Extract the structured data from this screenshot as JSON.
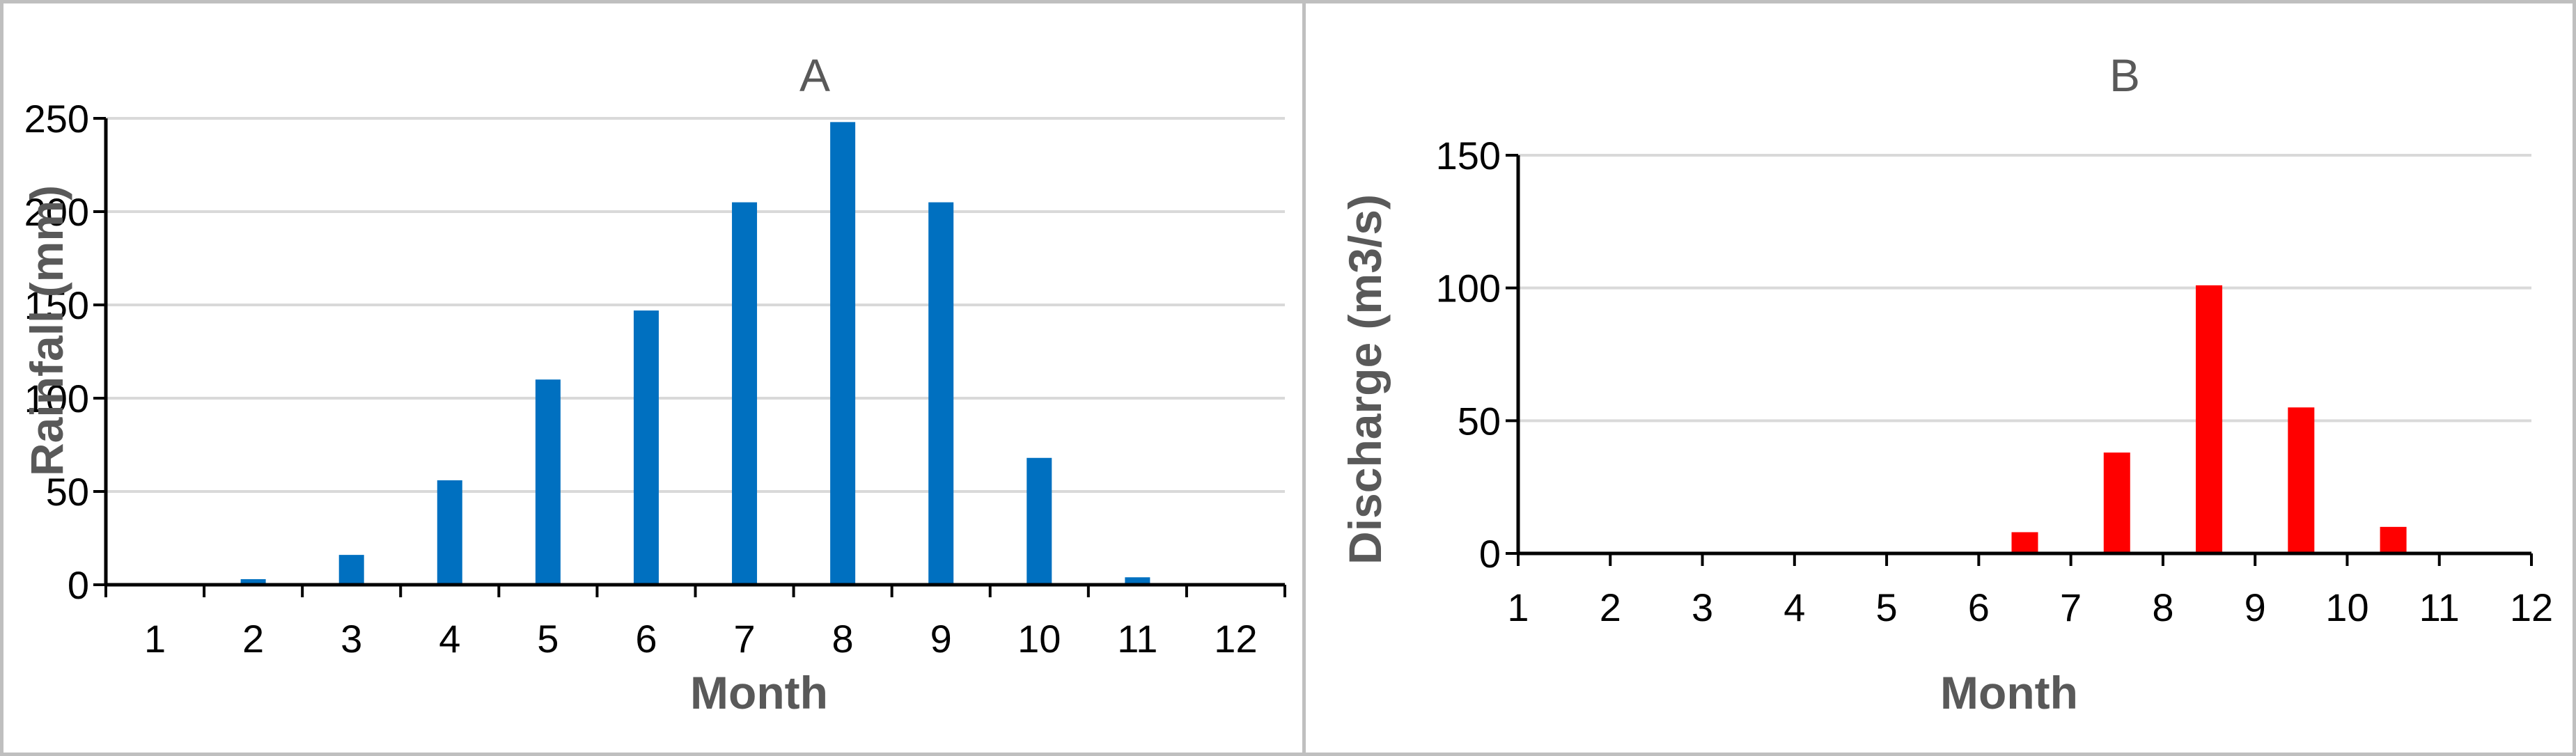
{
  "chart_data": [
    {
      "type": "bar",
      "title": "A",
      "xlabel": "Month",
      "ylabel": "Rainfall (mm)",
      "categories": [
        "1",
        "2",
        "3",
        "4",
        "5",
        "6",
        "7",
        "8",
        "9",
        "10",
        "11",
        "12"
      ],
      "values": [
        0,
        3,
        16,
        56,
        110,
        147,
        205,
        248,
        205,
        68,
        4,
        0
      ],
      "ylim": [
        0,
        250
      ],
      "yticks": [
        0,
        50,
        100,
        150,
        200,
        250
      ],
      "grid": true,
      "legend": "none",
      "bar_color": "#0070c0"
    },
    {
      "type": "bar",
      "title": "B",
      "xlabel": "Month",
      "ylabel": "Discharge (m3/s)",
      "categories": [
        "1",
        "2",
        "3",
        "4",
        "5",
        "6",
        "7",
        "8",
        "9",
        "10",
        "11",
        "12"
      ],
      "values": [
        0,
        0,
        0,
        0,
        0,
        0,
        8,
        38,
        101,
        55,
        10,
        0
      ],
      "ylim": [
        0,
        150
      ],
      "yticks": [
        0,
        50,
        100,
        150
      ],
      "grid": true,
      "legend": "none",
      "bar_color": "#ff0000"
    }
  ]
}
